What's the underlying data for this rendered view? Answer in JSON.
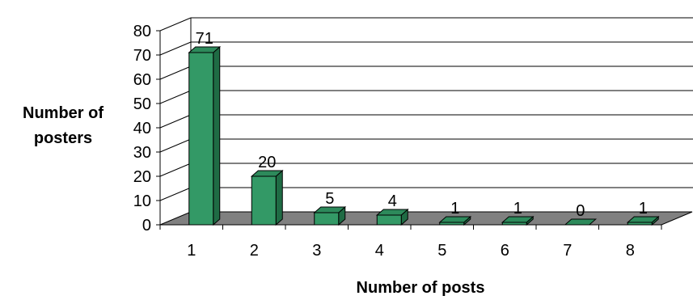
{
  "chart_data": {
    "type": "bar",
    "title": "",
    "xlabel": "Number of posts",
    "ylabel": [
      "Number of",
      "posters"
    ],
    "categories": [
      "1",
      "2",
      "3",
      "4",
      "5",
      "6",
      "7",
      "8"
    ],
    "values": [
      71,
      20,
      5,
      4,
      1,
      1,
      0,
      1
    ],
    "ylim": [
      0,
      80
    ],
    "yticks": [
      "0",
      "10",
      "20",
      "30",
      "40",
      "50",
      "60",
      "70",
      "80"
    ],
    "grid": true,
    "legend": "none",
    "style": "3d-column",
    "colors": {
      "bar_front": "#339966",
      "bar_top": "#2d8a5b",
      "bar_side": "#1f6b44",
      "floor": "#808080",
      "grid": "#000000"
    }
  }
}
